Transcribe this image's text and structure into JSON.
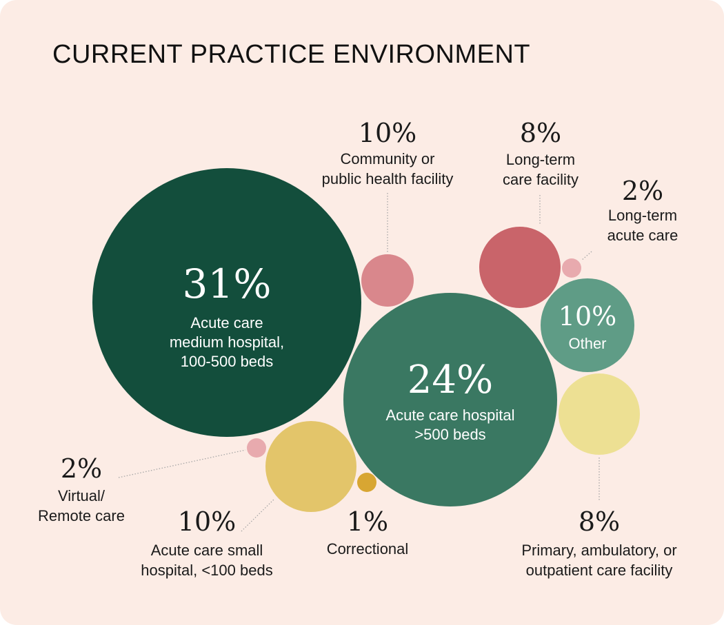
{
  "title": "CURRENT PRACTICE ENVIRONMENT",
  "colors": {
    "background": "#fcece5",
    "dark_green": "#134e3c",
    "medium_green": "#3a7862",
    "sage_green": "#5f9c86",
    "rose": "#c9646a",
    "pink": "#d9878c",
    "light_pink": "#e8aaae",
    "mustard": "#e3c56a",
    "gold": "#d8a632",
    "pale_yellow": "#ede093",
    "leader_line": "#a6a6a6",
    "text": "#1a1a1a"
  },
  "chart_data": {
    "type": "bubble",
    "title": "CURRENT PRACTICE ENVIRONMENT",
    "unit": "%",
    "items": [
      {
        "pct": "31%",
        "value": 31,
        "label_lines": [
          "Acute care",
          "medium hospital,",
          "100-500 beds"
        ],
        "color": "#134e3c"
      },
      {
        "pct": "24%",
        "value": 24,
        "label_lines": [
          "Acute care hospital",
          ">500 beds"
        ],
        "color": "#3a7862"
      },
      {
        "pct": "10%",
        "value": 10,
        "label_lines": [
          "Community or",
          "public health facility"
        ],
        "color": "#d9878c"
      },
      {
        "pct": "8%",
        "value": 8,
        "label_lines": [
          "Long-term",
          "care facility"
        ],
        "color": "#c9646a"
      },
      {
        "pct": "2%",
        "value": 2,
        "label_lines": [
          "Long-term",
          "acute care"
        ],
        "color": "#e8aaae"
      },
      {
        "pct": "10%",
        "value": 10,
        "label_lines": [
          "Other"
        ],
        "color": "#5f9c86"
      },
      {
        "pct": "8%",
        "value": 8,
        "label_lines": [
          "Primary, ambulatory, or",
          "outpatient care facility"
        ],
        "color": "#ede093"
      },
      {
        "pct": "10%",
        "value": 10,
        "label_lines": [
          "Acute care small",
          "hospital, <100 beds"
        ],
        "color": "#e3c56a"
      },
      {
        "pct": "2%",
        "value": 2,
        "label_lines": [
          "Virtual/",
          "Remote care"
        ],
        "color": "#e8aaae"
      },
      {
        "pct": "1%",
        "value": 1,
        "label_lines": [
          "Correctional"
        ],
        "color": "#d8a632"
      }
    ]
  }
}
